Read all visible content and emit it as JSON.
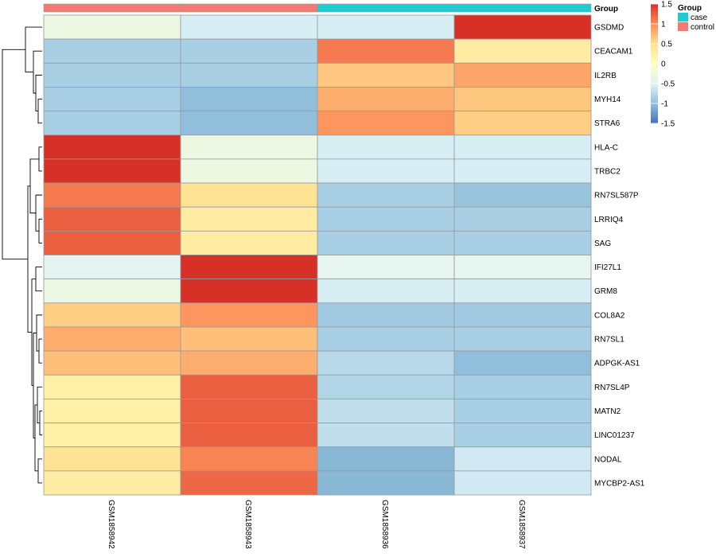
{
  "chart_data": {
    "type": "heatmap",
    "annotation_title": "Group",
    "legend_title": "Group",
    "groups": [
      {
        "name": "case",
        "color": "#1ECBD0"
      },
      {
        "name": "control",
        "color": "#F27A72"
      }
    ],
    "samples": [
      {
        "id": "GSM1858942",
        "group": "control"
      },
      {
        "id": "GSM1858943",
        "group": "control"
      },
      {
        "id": "GSM1858936",
        "group": "case"
      },
      {
        "id": "GSM1858937",
        "group": "case"
      }
    ],
    "genes": [
      "GSDMD",
      "CEACAM1",
      "IL2RB",
      "MYH14",
      "STRA6",
      "HLA-C",
      "TRBC2",
      "RN7SL587P",
      "LRRIQ4",
      "SAG",
      "IFI27L1",
      "GRM8",
      "COL8A2",
      "RN7SL1",
      "ADPGK-AS1",
      "RN7SL4P",
      "MATN2",
      "LINC01237",
      "NODAL",
      "MYCBP2-AS1"
    ],
    "values": [
      [
        -0.3,
        -0.55,
        -0.55,
        1.5
      ],
      [
        -0.85,
        -0.85,
        1.1,
        0.3
      ],
      [
        -0.85,
        -0.85,
        0.65,
        0.85
      ],
      [
        -0.85,
        -1.0,
        0.8,
        0.65
      ],
      [
        -0.85,
        -1.0,
        0.95,
        0.6
      ],
      [
        1.5,
        -0.3,
        -0.55,
        -0.55
      ],
      [
        1.5,
        -0.3,
        -0.55,
        -0.55
      ],
      [
        1.1,
        0.45,
        -0.85,
        -0.95
      ],
      [
        1.25,
        0.3,
        -0.85,
        -0.85
      ],
      [
        1.25,
        0.3,
        -0.85,
        -0.85
      ],
      [
        -0.45,
        1.5,
        -0.4,
        -0.4
      ],
      [
        -0.3,
        1.5,
        -0.55,
        -0.55
      ],
      [
        0.6,
        0.95,
        -0.9,
        -0.9
      ],
      [
        0.8,
        0.7,
        -0.85,
        -0.85
      ],
      [
        0.7,
        0.8,
        -0.75,
        -1.0
      ],
      [
        0.25,
        1.25,
        -0.8,
        -0.85
      ],
      [
        0.25,
        1.25,
        -0.7,
        -0.85
      ],
      [
        0.25,
        1.25,
        -0.7,
        -0.85
      ],
      [
        0.45,
        1.05,
        -1.05,
        -0.6
      ],
      [
        0.3,
        1.2,
        -1.05,
        -0.6
      ]
    ],
    "color_scale": {
      "min": -1.5,
      "max": 1.5,
      "ticks": [
        1.5,
        1,
        0.5,
        0,
        -0.5,
        -1,
        -1.5
      ],
      "stops": [
        "#4575B4",
        "#91BFDB",
        "#E0F3F8",
        "#FFFFBF",
        "#FEE090",
        "#FC8D59",
        "#D73027"
      ]
    },
    "row_dendrogram": true
  }
}
